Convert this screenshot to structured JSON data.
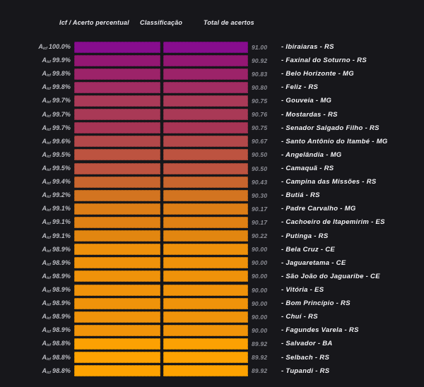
{
  "header": {
    "col_percent": "Icf / Acerto percentual",
    "col_classification": "Classificação",
    "col_total": "Total de acertos"
  },
  "row_label": {
    "prefix": "A",
    "subscript": "icf"
  },
  "colors": {
    "background": "#17171b",
    "header_text": "#e9e9ee",
    "percent_label_text": "#bcbdc3",
    "total_value_text": "#8d8e96",
    "city_label_text": "#f5f5f8"
  },
  "chart_data": {
    "type": "bar",
    "orientation": "horizontal",
    "title": "",
    "xlabel": "",
    "ylabel": "",
    "legend": [
      "Icf / Acerto percentual",
      "Classificação",
      "Total de acertos"
    ],
    "value_max": 91.0,
    "value_min": 89.92,
    "rows": [
      {
        "percent": "100.0%",
        "percent_value": 100.0,
        "total": "91.00",
        "total_value": 91.0,
        "city": "- Ibiraiaras - RS",
        "color": "#870d8e"
      },
      {
        "percent": "99.9%",
        "percent_value": 99.9,
        "total": "90.92",
        "total_value": 90.92,
        "city": "- Faxinal do Soturno - RS",
        "color": "#941773"
      },
      {
        "percent": "99.8%",
        "percent_value": 99.8,
        "total": "90.83",
        "total_value": 90.83,
        "city": "- Belo Horizonte - MG",
        "color": "#9c2369"
      },
      {
        "percent": "99.8%",
        "percent_value": 99.8,
        "total": "90.80",
        "total_value": 90.8,
        "city": "- Feliz - RS",
        "color": "#a12c62"
      },
      {
        "percent": "99.7%",
        "percent_value": 99.7,
        "total": "90.75",
        "total_value": 90.75,
        "city": "- Gouveia - MG",
        "color": "#aa3a58"
      },
      {
        "percent": "99.7%",
        "percent_value": 99.7,
        "total": "90.76",
        "total_value": 90.76,
        "city": "- Mostardas - RS",
        "color": "#a93956"
      },
      {
        "percent": "99.7%",
        "percent_value": 99.7,
        "total": "90.75",
        "total_value": 90.75,
        "city": "- Senador Salgado Filho - RS",
        "color": "#a73455"
      },
      {
        "percent": "99.6%",
        "percent_value": 99.6,
        "total": "90.67",
        "total_value": 90.67,
        "city": "- Santo Antônio do Itambé - MG",
        "color": "#b3484a"
      },
      {
        "percent": "99.5%",
        "percent_value": 99.5,
        "total": "90.50",
        "total_value": 90.5,
        "city": "- Angelândia - MG",
        "color": "#bd5340"
      },
      {
        "percent": "99.5%",
        "percent_value": 99.5,
        "total": "90.50",
        "total_value": 90.5,
        "city": "- Camaquã - RS",
        "color": "#bd5340"
      },
      {
        "percent": "99.4%",
        "percent_value": 99.4,
        "total": "90.43",
        "total_value": 90.43,
        "city": "- Campina das Missões - RS",
        "color": "#c8652e"
      },
      {
        "percent": "99.2%",
        "percent_value": 99.2,
        "total": "90.30",
        "total_value": 90.3,
        "city": "- Butiá - RS",
        "color": "#d37420"
      },
      {
        "percent": "99.1%",
        "percent_value": 99.1,
        "total": "90.17",
        "total_value": 90.17,
        "city": "- Padre Carvalho - MG",
        "color": "#dd7e16"
      },
      {
        "percent": "99.1%",
        "percent_value": 99.1,
        "total": "90.17",
        "total_value": 90.17,
        "city": "- Cachoeiro de Itapemirim - ES",
        "color": "#df8114"
      },
      {
        "percent": "99.1%",
        "percent_value": 99.1,
        "total": "90.22",
        "total_value": 90.22,
        "city": "- Putinga - RS",
        "color": "#e28610"
      },
      {
        "percent": "98.9%",
        "percent_value": 98.9,
        "total": "90.00",
        "total_value": 90.0,
        "city": "- Bela Cruz - CE",
        "color": "#ee910b"
      },
      {
        "percent": "98.9%",
        "percent_value": 98.9,
        "total": "90.00",
        "total_value": 90.0,
        "city": "- Jaguaretama - CE",
        "color": "#ef920a"
      },
      {
        "percent": "98.9%",
        "percent_value": 98.9,
        "total": "90.00",
        "total_value": 90.0,
        "city": "- São João do Jaguaribe - CE",
        "color": "#ef920a"
      },
      {
        "percent": "98.9%",
        "percent_value": 98.9,
        "total": "90.00",
        "total_value": 90.0,
        "city": "- Vitória - ES",
        "color": "#f0930a"
      },
      {
        "percent": "98.9%",
        "percent_value": 98.9,
        "total": "90.00",
        "total_value": 90.0,
        "city": "- Bom Princípio - RS",
        "color": "#f0930a"
      },
      {
        "percent": "98.9%",
        "percent_value": 98.9,
        "total": "90.00",
        "total_value": 90.0,
        "city": "- Chuí - RS",
        "color": "#f0930a"
      },
      {
        "percent": "98.9%",
        "percent_value": 98.9,
        "total": "90.00",
        "total_value": 90.0,
        "city": "- Fagundes Varela - RS",
        "color": "#f19409"
      },
      {
        "percent": "98.8%",
        "percent_value": 98.8,
        "total": "89.92",
        "total_value": 89.92,
        "city": "- Salvador - BA",
        "color": "#fca103"
      },
      {
        "percent": "98.8%",
        "percent_value": 98.8,
        "total": "89.92",
        "total_value": 89.92,
        "city": "- Selbach - RS",
        "color": "#fda201"
      },
      {
        "percent": "98.8%",
        "percent_value": 98.8,
        "total": "89.92",
        "total_value": 89.92,
        "city": "- Tupandi - RS",
        "color": "#fda201"
      }
    ]
  }
}
